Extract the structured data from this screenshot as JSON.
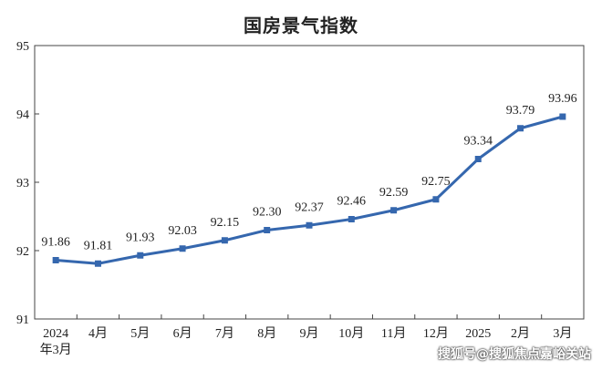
{
  "chart_data": {
    "type": "line",
    "title": "国房景气指数",
    "xlabel": "",
    "ylabel": "",
    "categories": [
      "2024\n年3月",
      "4月",
      "5月",
      "6月",
      "7月",
      "8月",
      "9月",
      "10月",
      "11月",
      "12月",
      "2025",
      "2月",
      "3月"
    ],
    "series": [
      {
        "values": [
          91.86,
          91.81,
          91.93,
          92.03,
          92.15,
          92.3,
          92.37,
          92.46,
          92.59,
          92.75,
          93.34,
          93.79,
          93.96
        ]
      }
    ],
    "data_labels": [
      "91.86",
      "91.81",
      "91.93",
      "92.03",
      "92.15",
      "92.30",
      "92.37",
      "92.46",
      "92.59",
      "92.75",
      "93.34",
      "93.79",
      "93.96"
    ],
    "ylim": [
      91,
      95
    ],
    "yticks": [
      91,
      92,
      93,
      94,
      95
    ],
    "grid": false,
    "legend": "none",
    "line_color": "#3567AE"
  },
  "watermark": "搜狐号@搜狐焦点嘉峪关站"
}
